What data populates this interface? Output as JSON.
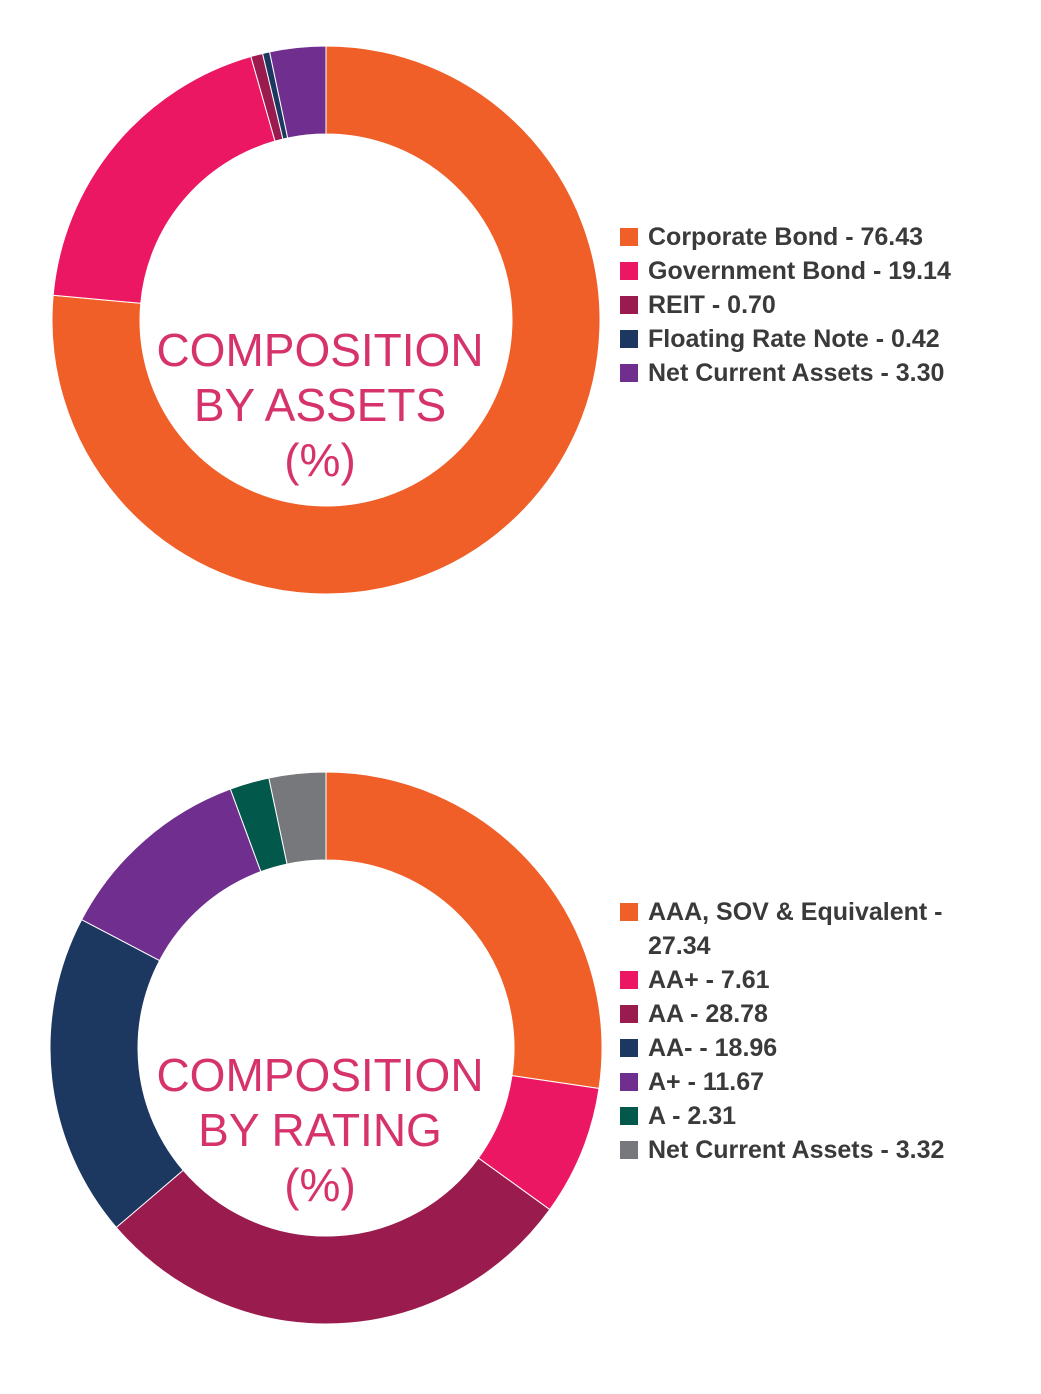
{
  "chart_data": [
    {
      "type": "pie",
      "title": [
        "COMPOSITION",
        "BY ASSETS",
        "(%)"
      ],
      "series": [
        {
          "name": "Corporate Bond - 76.43",
          "value": 76.43,
          "color": "#f05f28"
        },
        {
          "name": "Government Bond - 19.14",
          "value": 19.14,
          "color": "#ec1762"
        },
        {
          "name": "REIT - 0.70",
          "value": 0.7,
          "color": "#9a1b4e"
        },
        {
          "name": "Floating Rate Note - 0.42",
          "value": 0.42,
          "color": "#1c3760"
        },
        {
          "name": "Net Current Assets - 3.30",
          "value": 3.3,
          "color": "#702f8f"
        }
      ],
      "legend": "right"
    },
    {
      "type": "pie",
      "title": [
        "COMPOSITION",
        "BY RATING",
        "(%)"
      ],
      "series": [
        {
          "name": "AAA, SOV & Equivalent - 27.34",
          "value": 27.34,
          "color": "#f05f28"
        },
        {
          "name": "AA+ - 7.61",
          "value": 7.61,
          "color": "#ec1762"
        },
        {
          "name": "AA - 28.78",
          "value": 28.78,
          "color": "#9a1b4e"
        },
        {
          "name": "AA- - 18.96",
          "value": 18.96,
          "color": "#1c3760"
        },
        {
          "name": "A+ - 11.67",
          "value": 11.67,
          "color": "#702f8f"
        },
        {
          "name": "A - 2.31",
          "value": 2.31,
          "color": "#02584a"
        },
        {
          "name": "Net Current Assets - 3.32",
          "value": 3.32,
          "color": "#77787b"
        }
      ],
      "legend": "right"
    }
  ]
}
